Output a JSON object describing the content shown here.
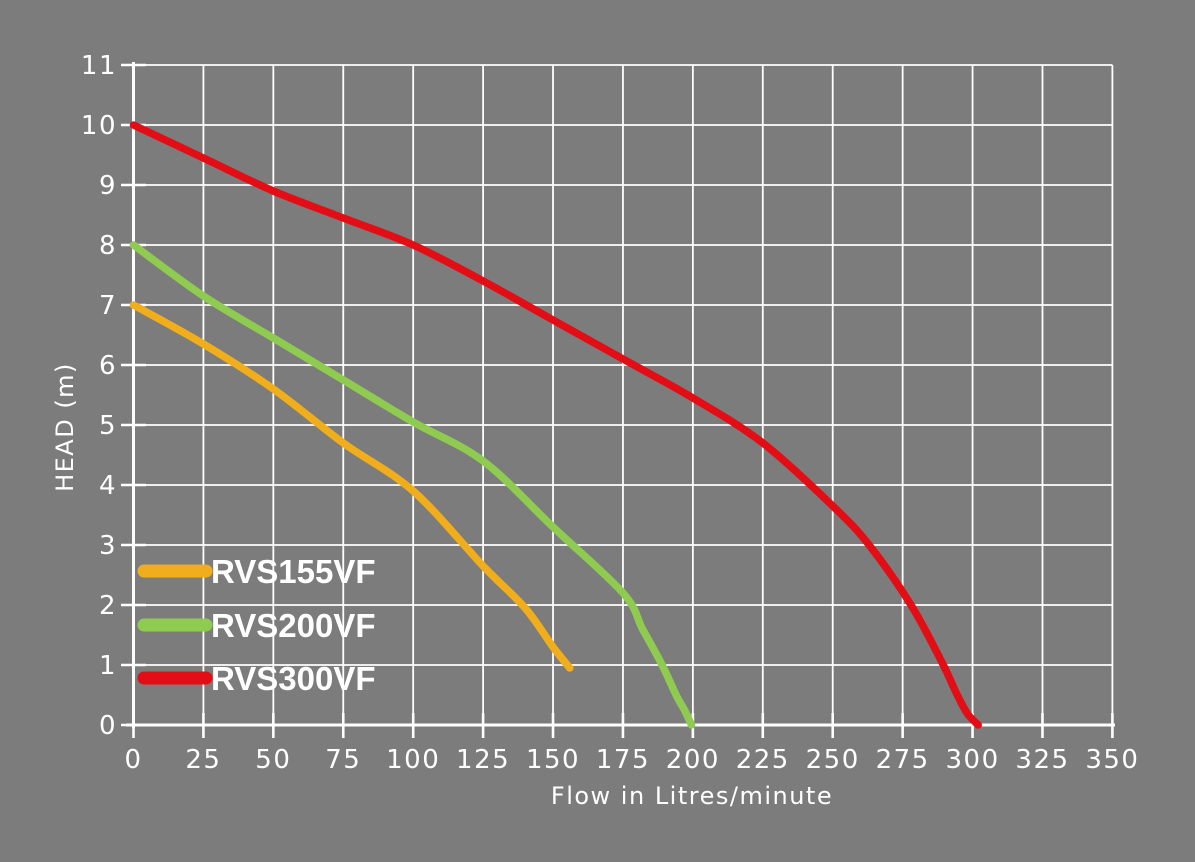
{
  "chart_data": {
    "type": "line",
    "title": "",
    "xlabel": "Flow in Litres/minute",
    "ylabel": "HEAD (m)",
    "xlim": [
      0,
      350
    ],
    "ylim": [
      0,
      11
    ],
    "x_ticks": [
      0,
      25,
      50,
      75,
      100,
      125,
      150,
      175,
      200,
      225,
      250,
      275,
      300,
      325,
      350
    ],
    "y_ticks": [
      0,
      1,
      2,
      3,
      4,
      5,
      6,
      7,
      8,
      9,
      10,
      11
    ],
    "grid": true,
    "legend_position": "inside lower-left",
    "colors": {
      "background": "#7C7C7C",
      "grid": "#FFFFFF",
      "text": "#FFFFFF"
    },
    "series": [
      {
        "name": "RVS155VF",
        "color": "#F0AE1C",
        "points": [
          [
            0,
            7.0
          ],
          [
            25,
            6.35
          ],
          [
            50,
            5.6
          ],
          [
            75,
            4.7
          ],
          [
            100,
            3.9
          ],
          [
            125,
            2.65
          ],
          [
            140,
            1.95
          ],
          [
            150,
            1.3
          ],
          [
            156,
            0.95
          ]
        ]
      },
      {
        "name": "RVS200VF",
        "color": "#8FCB50",
        "points": [
          [
            0,
            8.0
          ],
          [
            25,
            7.15
          ],
          [
            50,
            6.45
          ],
          [
            75,
            5.75
          ],
          [
            100,
            5.05
          ],
          [
            125,
            4.4
          ],
          [
            150,
            3.3
          ],
          [
            175,
            2.2
          ],
          [
            182,
            1.6
          ],
          [
            189,
            1.0
          ],
          [
            194,
            0.5
          ],
          [
            197,
            0.25
          ],
          [
            199.5,
            0
          ]
        ]
      },
      {
        "name": "RVS300VF",
        "color": "#E30D15",
        "points": [
          [
            0,
            10.0
          ],
          [
            25,
            9.45
          ],
          [
            50,
            8.9
          ],
          [
            75,
            8.45
          ],
          [
            100,
            8.0
          ],
          [
            125,
            7.4
          ],
          [
            150,
            6.75
          ],
          [
            175,
            6.1
          ],
          [
            200,
            5.45
          ],
          [
            225,
            4.7
          ],
          [
            250,
            3.65
          ],
          [
            263,
            3.0
          ],
          [
            278,
            2.0
          ],
          [
            289,
            1.05
          ],
          [
            294,
            0.55
          ],
          [
            298,
            0.2
          ],
          [
            302,
            0
          ]
        ]
      }
    ]
  }
}
